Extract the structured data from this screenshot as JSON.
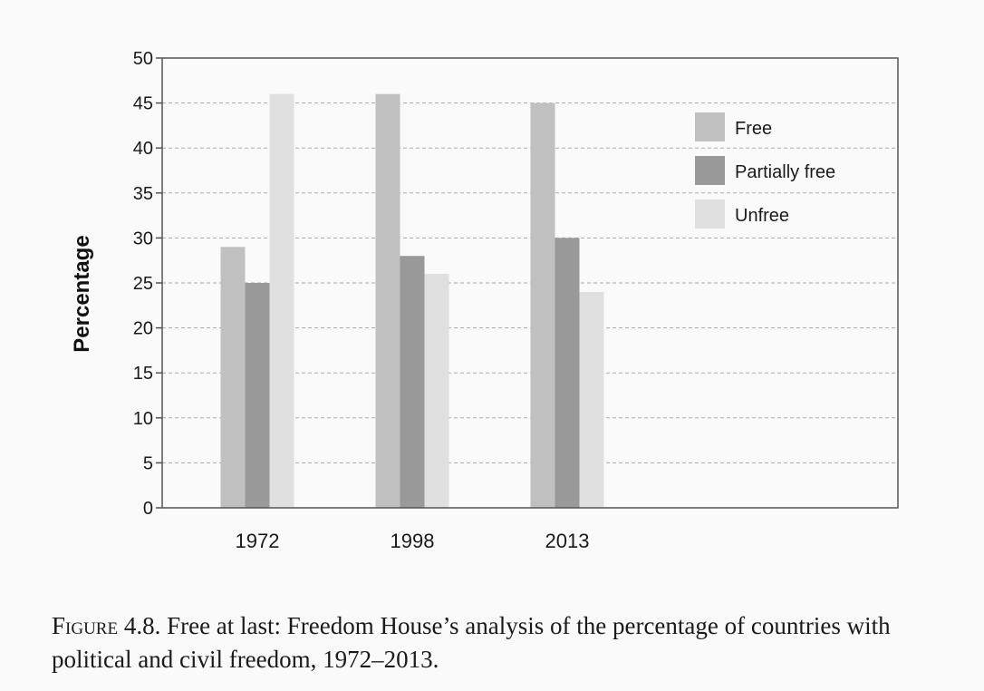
{
  "chart_data": {
    "type": "bar",
    "categories": [
      "1972",
      "1998",
      "2013"
    ],
    "series": [
      {
        "name": "Free",
        "values": [
          29,
          46,
          45
        ],
        "color": "#c0c0c0"
      },
      {
        "name": "Partially free",
        "values": [
          25,
          28,
          30
        ],
        "color": "#999999"
      },
      {
        "name": "Unfree",
        "values": [
          46,
          26,
          24
        ],
        "color": "#e0e0e0"
      }
    ],
    "ylabel": "Percentage",
    "xlabel": "",
    "ylim": [
      0,
      50
    ],
    "yticks": [
      0,
      5,
      10,
      15,
      20,
      25,
      30,
      35,
      40,
      45,
      50
    ],
    "grid": true,
    "legend_position": "top-right"
  },
  "caption": {
    "figure_word": "Figure",
    "text": " 4.8. Free at last: Freedom House’s analysis of the percentage of countries with political and civil freedom, 1972–2013."
  }
}
